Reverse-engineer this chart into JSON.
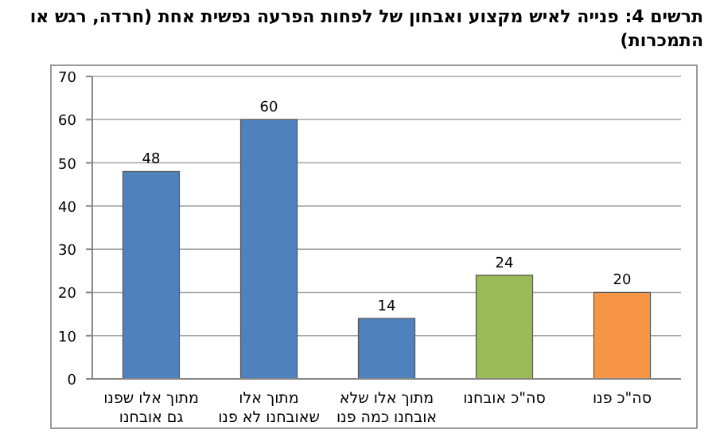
{
  "chart_data": {
    "type": "bar",
    "title": "תרשים 4: פנייה לאיש מקצוע ואבחון של לפחות הפרעה נפשית אחת (חרדה, רגש או התמכרות)",
    "categories": [
      "מתוך אלו שפנו גם אובחנו",
      "מתוך אלו שאובחנו לא פנו",
      "מתוך אלו שלא אובחנו כמה פנו",
      "סה\"כ אובחנו",
      "סה\"כ פנו"
    ],
    "values": [
      48,
      60,
      14,
      24,
      20
    ],
    "colors": [
      "#4f81bd",
      "#4f81bd",
      "#4f81bd",
      "#9bbb59",
      "#f79646"
    ],
    "ylim": [
      0,
      70
    ],
    "yticks": [
      0,
      10,
      20,
      30,
      40,
      50,
      60,
      70
    ],
    "grid": "y",
    "data_labels": true
  }
}
